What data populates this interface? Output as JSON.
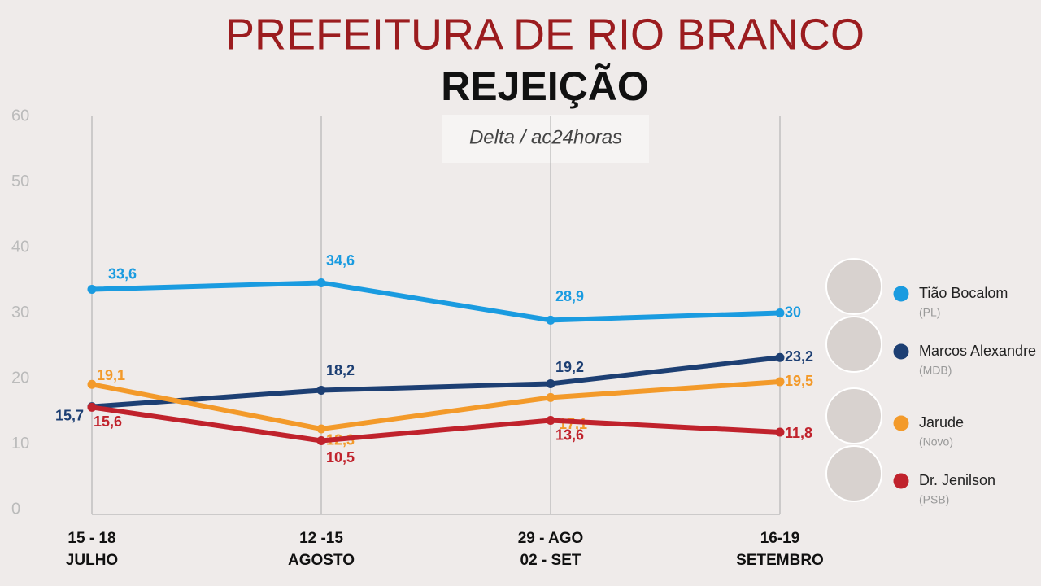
{
  "chart_data": {
    "type": "line",
    "title": "PREFEITURA DE RIO BRANCO",
    "subtitle": "REJEIÇÃO",
    "source": "Delta / ac24horas",
    "categories": [
      [
        "15 - 18",
        "JULHO"
      ],
      [
        "12 -15",
        "AGOSTO"
      ],
      [
        "29 - AGO",
        "02 - SET"
      ],
      [
        "16-19",
        "SETEMBRO"
      ]
    ],
    "ylim": [
      0,
      60
    ],
    "yticks": [
      0,
      10,
      20,
      30,
      40,
      50,
      60
    ],
    "series": [
      {
        "name": "Tião Bocalom",
        "party": "(PL)",
        "color": "#1a9be0",
        "values": [
          33.6,
          34.6,
          28.9,
          30
        ],
        "value_labels": [
          "33,6",
          "34,6",
          "28,9",
          "30"
        ]
      },
      {
        "name": "Marcos Alexandre",
        "party": "(MDB)",
        "color": "#1d3f73",
        "values": [
          15.7,
          18.2,
          19.2,
          23.2
        ],
        "value_labels": [
          "15,7",
          "18,2",
          "19,2",
          "23,2"
        ]
      },
      {
        "name": "Jarude",
        "party": "(Novo)",
        "color": "#f39a2a",
        "values": [
          19.1,
          12.3,
          17.1,
          19.5
        ],
        "value_labels": [
          "19,1",
          "12,3",
          "17,1",
          "19,5"
        ]
      },
      {
        "name": "Dr. Jenilson",
        "party": "(PSB)",
        "color": "#c0222c",
        "values": [
          15.6,
          10.5,
          13.6,
          11.8
        ],
        "value_labels": [
          "15,6",
          "10,5",
          "13,6",
          "11,8"
        ]
      }
    ]
  }
}
